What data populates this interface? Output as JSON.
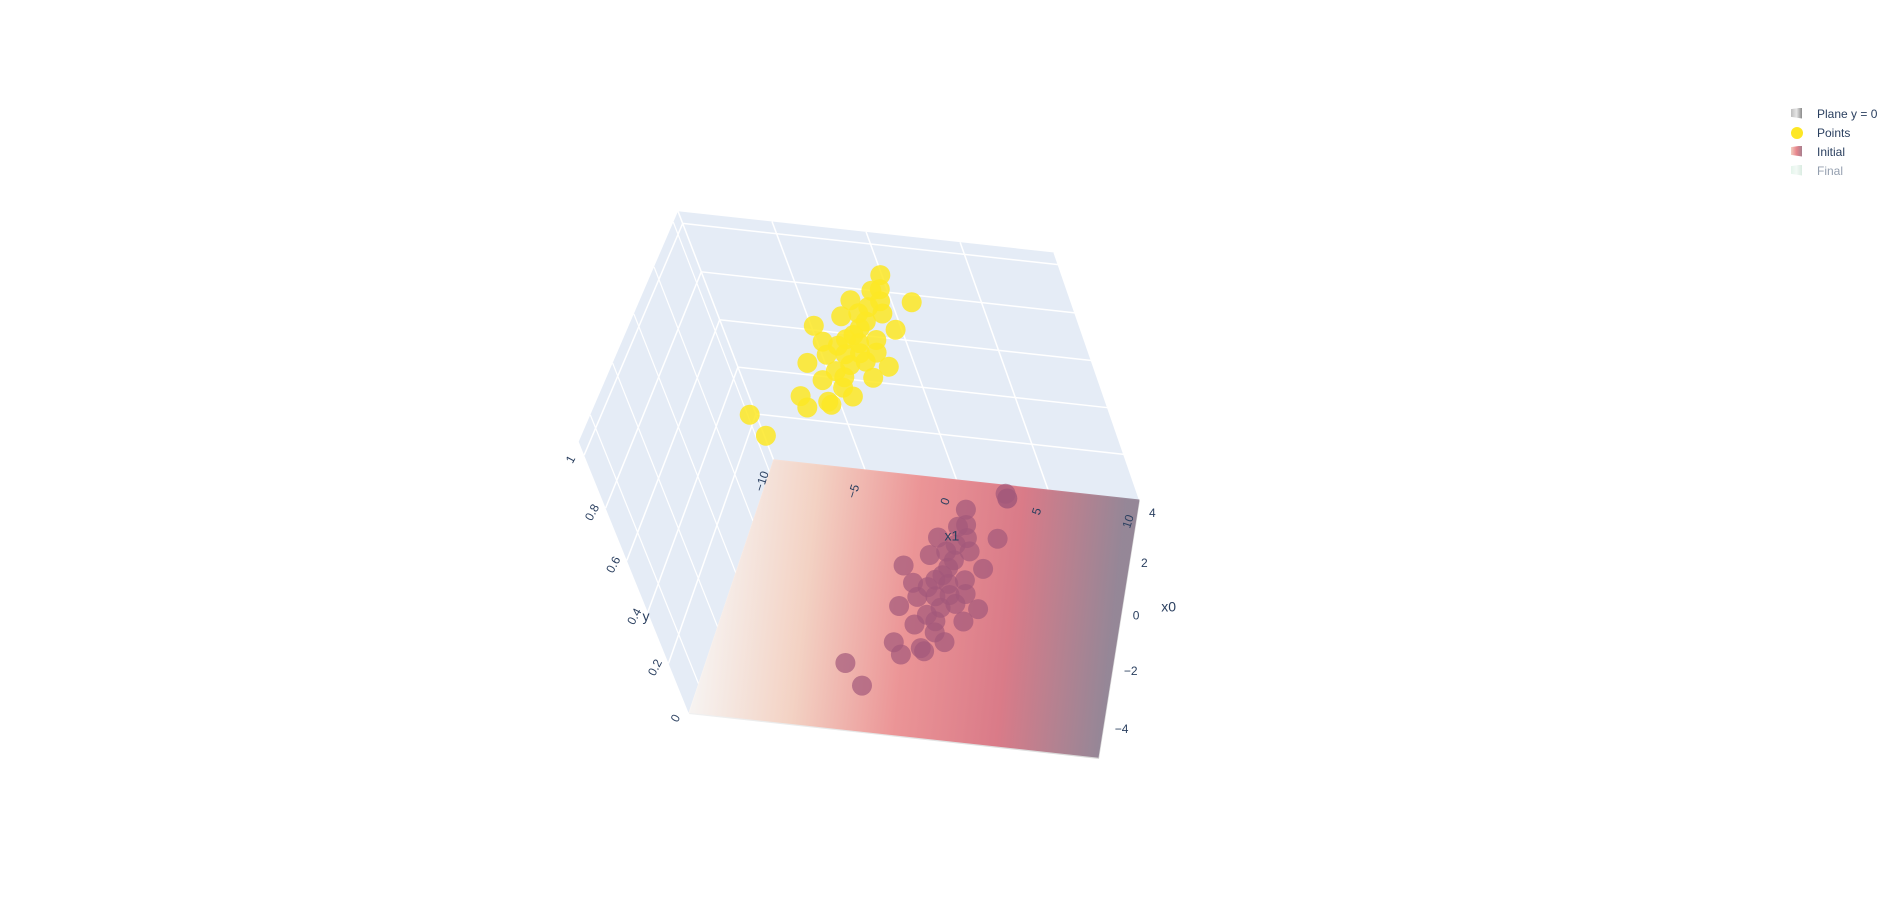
{
  "chart_data": {
    "type": "scatter3d",
    "axes": {
      "x": {
        "title": "x0",
        "ticks": [
          "−4",
          "−2",
          "0",
          "2",
          "4"
        ],
        "range": [
          -5,
          4.5
        ]
      },
      "y": {
        "title": "x1",
        "ticks": [
          "−10",
          "−5",
          "0",
          "5",
          "10"
        ],
        "range": [
          -10,
          10
        ]
      },
      "z": {
        "title": "y",
        "ticks": [
          "0",
          "0.2",
          "0.4",
          "0.6",
          "0.8",
          "1"
        ],
        "range": [
          0,
          1.05
        ]
      }
    },
    "legend": {
      "placement": "top-right",
      "items": [
        {
          "label": "Plane y = 0",
          "symbol": "surface",
          "colors": [
            "#bdbdbd",
            "#e6e6e6",
            "#8c8c8c"
          ],
          "visible": true
        },
        {
          "label": "Points",
          "symbol": "marker",
          "colors": [
            "#fde725"
          ],
          "visible": true
        },
        {
          "label": "Initial",
          "symbol": "surface",
          "colors": [
            "#f2cfc0",
            "#e8858c",
            "#a8808f"
          ],
          "visible": true
        },
        {
          "label": "Final",
          "symbol": "surface",
          "colors": [
            "#c9ead8",
            "#e6f4ec",
            "#b6d9c5"
          ],
          "visible": "legendonly"
        }
      ]
    },
    "surfaces": [
      {
        "name": "Plane y = 0",
        "z": 0,
        "colors": [
          "#e6e6e6",
          "#bdbdbd"
        ]
      },
      {
        "name": "Initial",
        "z": 0.005,
        "colors": [
          "#f7f4f2",
          "#f4cfbf",
          "#ec8c8e",
          "#d9707f",
          "#8e7e90"
        ]
      }
    ],
    "series": [
      {
        "name": "Points",
        "color_high": "#fde725",
        "color_low": "#a2587a",
        "points": [
          [
            -2.9,
            -3.1,
            1
          ],
          [
            -3.6,
            -2.0,
            1
          ],
          [
            -2.4,
            -0.5,
            1
          ],
          [
            -2.0,
            -1.0,
            1
          ],
          [
            -2.1,
            0.4,
            1
          ],
          [
            -2.2,
            0.6,
            1
          ],
          [
            -1.8,
            1.5,
            1
          ],
          [
            -1.5,
            0.9,
            1
          ],
          [
            -1.3,
            -0.2,
            1
          ],
          [
            -1.1,
            0.8,
            1
          ],
          [
            -1.0,
            2.2,
            1
          ],
          [
            -0.9,
            0.3,
            1
          ],
          [
            -0.7,
            -1.2,
            1
          ],
          [
            -0.6,
            0.9,
            1
          ],
          [
            -0.5,
            2.8,
            1
          ],
          [
            -0.4,
            1.6,
            1
          ],
          [
            -0.3,
            -0.4,
            1
          ],
          [
            -0.2,
            0.5,
            1
          ],
          [
            -0.1,
            1.2,
            1
          ],
          [
            0.0,
            2.0,
            1
          ],
          [
            0.1,
            0.0,
            1
          ],
          [
            0.2,
            -0.8,
            1
          ],
          [
            0.3,
            1.0,
            1
          ],
          [
            0.4,
            0.3,
            1
          ],
          [
            0.5,
            1.8,
            1
          ],
          [
            0.6,
            0.6,
            1
          ],
          [
            0.8,
            -1.5,
            1
          ],
          [
            0.9,
            0.8,
            1
          ],
          [
            1.0,
            2.6,
            1
          ],
          [
            1.2,
            1.0,
            1
          ],
          [
            1.3,
            -0.3,
            1
          ],
          [
            1.5,
            0.5,
            1
          ],
          [
            1.6,
            1.7,
            1
          ],
          [
            1.8,
            0.9,
            1
          ],
          [
            2.0,
            -0.1,
            1
          ],
          [
            2.1,
            1.4,
            1
          ],
          [
            2.2,
            3.0,
            1
          ],
          [
            2.5,
            0.8,
            1
          ],
          [
            2.6,
            1.2,
            1
          ],
          [
            3.2,
            1.0,
            1
          ],
          [
            4.0,
            2.9,
            0
          ]
        ]
      }
    ]
  }
}
